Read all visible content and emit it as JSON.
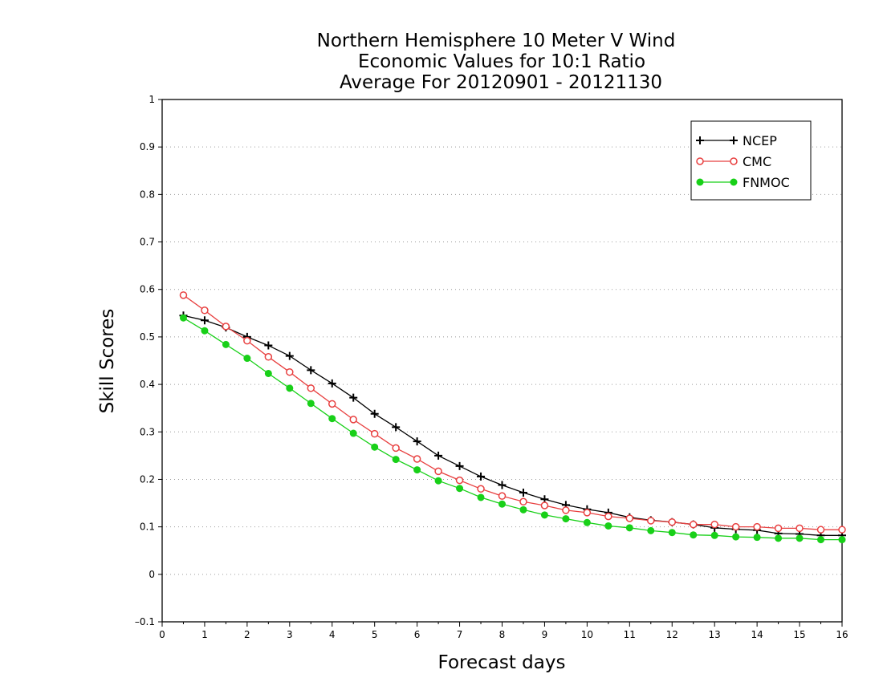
{
  "chart_data": {
    "type": "line",
    "title": [
      "Northern Hemisphere 10 Meter V Wind",
      "Economic Values for 10:1 Ratio",
      "Average For 20120901 - 20121130"
    ],
    "xlabel": "Forecast days",
    "ylabel": "Skill Scores",
    "xlim": [
      0,
      16
    ],
    "ylim": [
      -0.1,
      1
    ],
    "xticks": [
      0,
      1,
      2,
      3,
      4,
      5,
      6,
      7,
      8,
      9,
      10,
      11,
      12,
      13,
      14,
      15,
      16
    ],
    "xtick_labels": [
      "0",
      "1",
      "2",
      "3",
      "4",
      "5",
      "6",
      "7",
      "8",
      "9",
      "10",
      "11",
      "12",
      "13",
      "14",
      "15",
      "16"
    ],
    "yticks": [
      -0.1,
      0,
      0.1,
      0.2,
      0.3,
      0.4,
      0.5,
      0.6,
      0.7,
      0.8,
      0.9,
      1
    ],
    "ytick_labels": [
      "–0.1",
      "0",
      "0.1",
      "0.2",
      "0.3",
      "0.4",
      "0.5",
      "0.6",
      "0.7",
      "0.8",
      "0.9",
      "1"
    ],
    "grid": "horizontal-dotted",
    "legend_position": "top-right",
    "x": [
      0.5,
      1,
      1.5,
      2,
      2.5,
      3,
      3.5,
      4,
      4.5,
      5,
      5.5,
      6,
      6.5,
      7,
      7.5,
      8,
      8.5,
      9,
      9.5,
      10,
      10.5,
      11,
      11.5,
      12,
      12.5,
      13,
      13.5,
      14,
      14.5,
      15,
      15.5,
      16
    ],
    "series": [
      {
        "name": "NCEP",
        "marker": "plus",
        "color": "#000000",
        "values": [
          0.545,
          0.535,
          0.52,
          0.5,
          0.482,
          0.46,
          0.43,
          0.402,
          0.372,
          0.338,
          0.31,
          0.28,
          0.25,
          0.228,
          0.206,
          0.188,
          0.172,
          0.158,
          0.146,
          0.137,
          0.13,
          0.12,
          0.114,
          0.11,
          0.105,
          0.098,
          0.095,
          0.093,
          0.086,
          0.085,
          0.082,
          0.082
        ]
      },
      {
        "name": "CMC",
        "marker": "open-circle",
        "color": "#e84040",
        "values": [
          0.588,
          0.556,
          0.522,
          0.492,
          0.458,
          0.426,
          0.392,
          0.359,
          0.326,
          0.296,
          0.266,
          0.243,
          0.217,
          0.198,
          0.18,
          0.165,
          0.153,
          0.145,
          0.135,
          0.13,
          0.122,
          0.118,
          0.113,
          0.11,
          0.105,
          0.105,
          0.1,
          0.1,
          0.097,
          0.097,
          0.094,
          0.094
        ]
      },
      {
        "name": "FNMOC",
        "marker": "filled-circle",
        "color": "#18d018",
        "values": [
          0.54,
          0.513,
          0.484,
          0.455,
          0.423,
          0.392,
          0.36,
          0.328,
          0.297,
          0.268,
          0.242,
          0.22,
          0.197,
          0.181,
          0.162,
          0.148,
          0.136,
          0.125,
          0.117,
          0.109,
          0.102,
          0.098,
          0.092,
          0.088,
          0.083,
          0.082,
          0.079,
          0.078,
          0.076,
          0.076,
          0.073,
          0.073
        ]
      }
    ]
  }
}
